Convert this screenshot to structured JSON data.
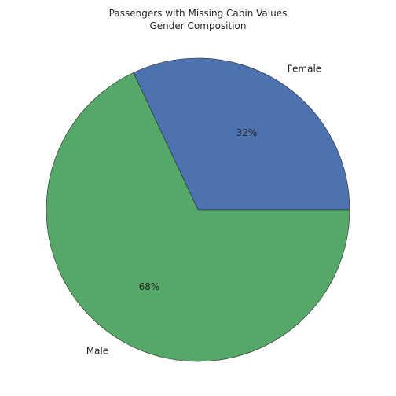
{
  "chart_data": {
    "type": "pie",
    "title_lines": [
      "Passengers with Missing Cabin Values",
      "Gender Composition"
    ],
    "slices": [
      {
        "label": "Female",
        "value": 32,
        "pct_label": "32%",
        "color": "#4c72b0"
      },
      {
        "label": "Male",
        "value": 68,
        "pct_label": "68%",
        "color": "#55a868"
      }
    ],
    "start_angle_deg": 0,
    "direction": "counterclockwise",
    "edge_color": "#2b2b2b"
  }
}
